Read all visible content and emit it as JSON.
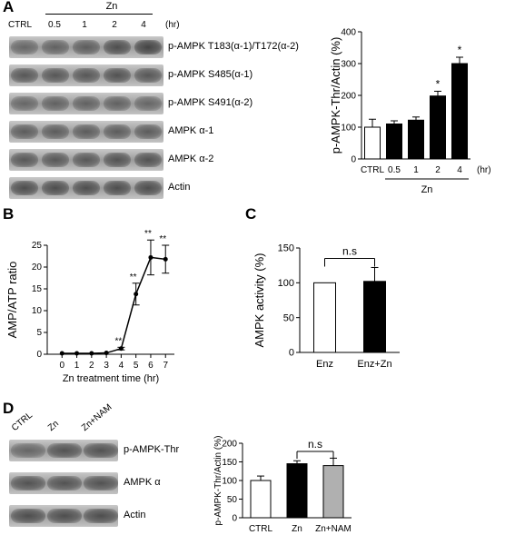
{
  "panelA": {
    "letter": "A",
    "zn_header": "Zn",
    "lanes": [
      "CTRL",
      "0.5",
      "1",
      "2",
      "4"
    ],
    "unit": "(hr)",
    "blots": [
      {
        "label": "p-AMPK T183(α-1)/T172(α-2)",
        "intensity": [
          0.55,
          0.6,
          0.65,
          0.8,
          0.9
        ]
      },
      {
        "label": "p-AMPK S485(α-1)",
        "intensity": [
          0.7,
          0.7,
          0.7,
          0.75,
          0.7
        ]
      },
      {
        "label": "p-AMPK S491(α-2)",
        "intensity": [
          0.55,
          0.6,
          0.6,
          0.6,
          0.55
        ]
      },
      {
        "label": "AMPK α-1",
        "intensity": [
          0.65,
          0.65,
          0.65,
          0.65,
          0.65
        ]
      },
      {
        "label": "AMPK α-2",
        "intensity": [
          0.7,
          0.7,
          0.7,
          0.75,
          0.75
        ]
      },
      {
        "label": "Actin",
        "intensity": [
          0.8,
          0.8,
          0.8,
          0.8,
          0.8
        ]
      }
    ]
  },
  "panelD": {
    "letter": "D",
    "lanes": [
      "CTRL",
      "Zn",
      "Zn+NAM"
    ],
    "blots": [
      {
        "label": "p-AMPK-Thr",
        "intensity": [
          0.55,
          0.75,
          0.75
        ]
      },
      {
        "label": "AMPK α",
        "intensity": [
          0.75,
          0.75,
          0.75
        ]
      },
      {
        "label": "Actin",
        "intensity": [
          0.8,
          0.8,
          0.8
        ]
      }
    ]
  },
  "chart_data": [
    {
      "id": "A",
      "type": "bar",
      "ylabel": "p-AMPK-Thr/Actin (%)",
      "categories": [
        "CTRL",
        "0.5",
        "1",
        "2",
        "4"
      ],
      "values": [
        100,
        110,
        122,
        198,
        300
      ],
      "errors": [
        25,
        10,
        10,
        15,
        20
      ],
      "fills": [
        "#ffffff",
        "#000000",
        "#000000",
        "#000000",
        "#000000"
      ],
      "annotations": [
        "",
        "",
        "",
        "*",
        "*"
      ],
      "ylim": [
        0,
        400
      ],
      "yticks": [
        0,
        100,
        200,
        300,
        400
      ],
      "xunit": "(hr)",
      "group_label": "Zn"
    },
    {
      "id": "B",
      "type": "line",
      "letter": "B",
      "xlabel": "Zn treatment time (hr)",
      "ylabel": "AMP/ATP ratio",
      "x": [
        0,
        1,
        2,
        3,
        4,
        5,
        6,
        7
      ],
      "y": [
        0.2,
        0.2,
        0.2,
        0.3,
        1.3,
        13.8,
        22.2,
        21.8
      ],
      "errors": [
        0,
        0,
        0,
        0,
        0.3,
        2.5,
        4,
        3.2
      ],
      "annotations": [
        "",
        "",
        "",
        "",
        "**",
        "**",
        "**",
        "**"
      ],
      "ylim": [
        0,
        25
      ],
      "yticks": [
        0,
        5,
        10,
        15,
        20,
        25
      ],
      "xticks": [
        0,
        1,
        2,
        3,
        4,
        5,
        6,
        7
      ]
    },
    {
      "id": "C",
      "type": "bar",
      "letter": "C",
      "ylabel": "AMPK activity (%)",
      "categories": [
        "Enz",
        "Enz+Zn"
      ],
      "values": [
        100,
        102
      ],
      "errors": [
        0,
        20
      ],
      "fills": [
        "#ffffff",
        "#000000"
      ],
      "ylim": [
        0,
        150
      ],
      "yticks": [
        0,
        50,
        100,
        150
      ],
      "significance": "n.s"
    },
    {
      "id": "D",
      "type": "bar",
      "ylabel": "p-AMPK-Thr/Actin (%)",
      "categories": [
        "CTRL",
        "Zn",
        "Zn+NAM"
      ],
      "values": [
        100,
        145,
        140
      ],
      "errors": [
        12,
        8,
        20
      ],
      "fills": [
        "#ffffff",
        "#000000",
        "#b0b0b0"
      ],
      "ylim": [
        0,
        200
      ],
      "yticks": [
        0,
        50,
        100,
        150,
        200
      ],
      "significance": "n.s"
    }
  ]
}
